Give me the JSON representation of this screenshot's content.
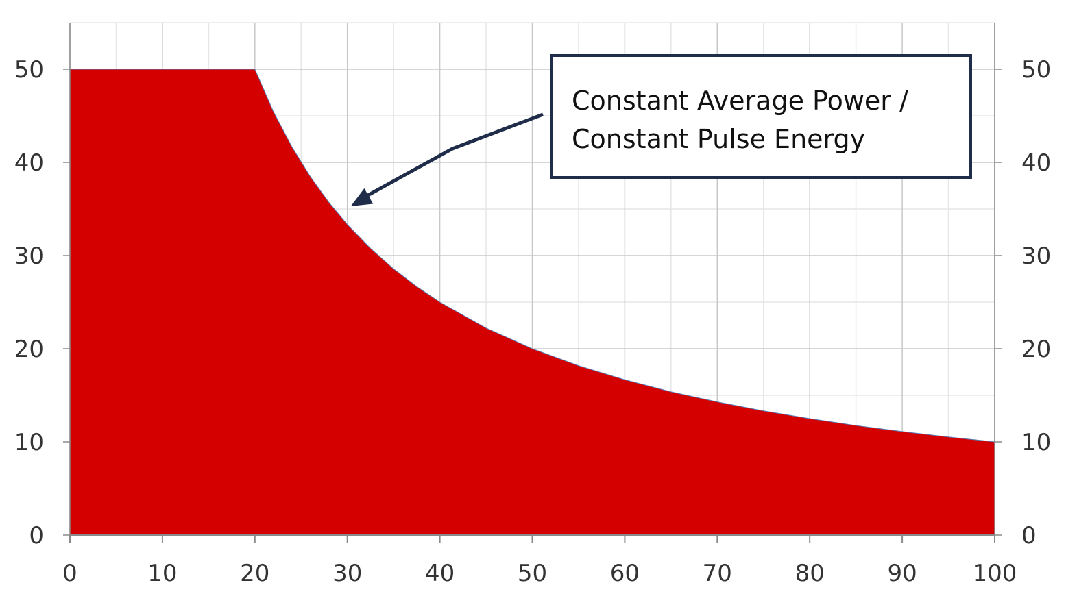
{
  "chart_data": {
    "type": "area",
    "title": "",
    "xlabel": "",
    "ylabel": "",
    "xlim": [
      0,
      100
    ],
    "ylim": [
      0,
      50
    ],
    "x_ticks": [
      0,
      10,
      20,
      30,
      40,
      50,
      60,
      70,
      80,
      90,
      100
    ],
    "y_ticks": [
      0,
      10,
      20,
      30,
      40,
      50
    ],
    "y_ticks_right": [
      0,
      10,
      20,
      30,
      40,
      50
    ],
    "grid": true,
    "minor_grid": true,
    "fill_color": "#d40000",
    "series": [
      {
        "x": [
          0,
          5,
          10,
          15,
          20,
          22,
          24,
          26,
          28,
          30,
          32.5,
          35,
          37.5,
          40,
          45,
          50,
          55,
          60,
          65,
          70,
          75,
          80,
          85,
          90,
          95,
          100
        ],
        "y": [
          50,
          50,
          50,
          50,
          50,
          45.45,
          41.67,
          38.46,
          35.71,
          33.33,
          30.77,
          28.57,
          26.67,
          25.0,
          22.22,
          20.0,
          18.18,
          16.67,
          15.38,
          14.29,
          13.33,
          12.5,
          11.76,
          11.11,
          10.53,
          10.0
        ]
      }
    ],
    "annotation": {
      "lines": [
        "Constant  Average Power /",
        "Constant  Pulse Energy"
      ],
      "arrow_target": [
        30,
        35
      ]
    }
  }
}
